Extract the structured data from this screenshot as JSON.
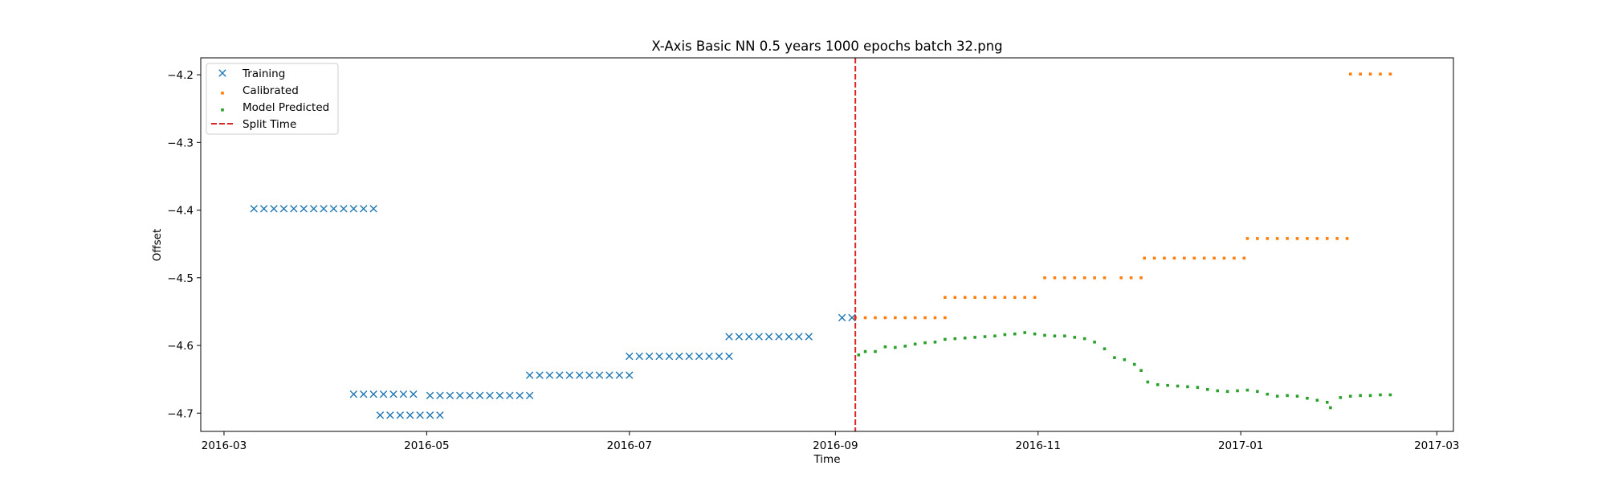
{
  "chart_data": {
    "type": "scatter",
    "title": "X-Axis Basic NN 0.5 years 1000 epochs batch 32.png",
    "xlabel": "Time",
    "ylabel": "Offset",
    "xlim": [
      "2016-02-23",
      "2017-03-06"
    ],
    "ylim": [
      -4.727,
      -4.175
    ],
    "x_ticks": [
      "2016-03",
      "2016-05",
      "2016-07",
      "2016-09",
      "2016-11",
      "2017-01",
      "2017-03"
    ],
    "y_ticks": [
      -4.7,
      -4.6,
      -4.5,
      -4.4,
      -4.3,
      -4.2
    ],
    "y_tick_labels": [
      "−4.7",
      "−4.6",
      "−4.5",
      "−4.4",
      "−4.3",
      "−4.2"
    ],
    "grid": false,
    "legend_position": "upper left",
    "split_time": "2016-09-07",
    "series": [
      {
        "name": "Training",
        "marker": "x",
        "color": "#1f77b4",
        "points": [
          [
            "2016-03-10",
            -4.398
          ],
          [
            "2016-03-13",
            -4.398
          ],
          [
            "2016-03-16",
            -4.398
          ],
          [
            "2016-03-19",
            -4.398
          ],
          [
            "2016-03-22",
            -4.398
          ],
          [
            "2016-03-25",
            -4.398
          ],
          [
            "2016-03-28",
            -4.398
          ],
          [
            "2016-03-31",
            -4.398
          ],
          [
            "2016-04-03",
            -4.398
          ],
          [
            "2016-04-06",
            -4.398
          ],
          [
            "2016-04-09",
            -4.398
          ],
          [
            "2016-04-12",
            -4.398
          ],
          [
            "2016-04-15",
            -4.398
          ],
          [
            "2016-04-09",
            -4.672
          ],
          [
            "2016-04-12",
            -4.672
          ],
          [
            "2016-04-15",
            -4.672
          ],
          [
            "2016-04-18",
            -4.672
          ],
          [
            "2016-04-21",
            -4.672
          ],
          [
            "2016-04-24",
            -4.672
          ],
          [
            "2016-04-27",
            -4.672
          ],
          [
            "2016-04-17",
            -4.703
          ],
          [
            "2016-04-20",
            -4.703
          ],
          [
            "2016-04-23",
            -4.703
          ],
          [
            "2016-04-26",
            -4.703
          ],
          [
            "2016-04-29",
            -4.703
          ],
          [
            "2016-05-02",
            -4.703
          ],
          [
            "2016-05-05",
            -4.703
          ],
          [
            "2016-05-02",
            -4.674
          ],
          [
            "2016-05-05",
            -4.674
          ],
          [
            "2016-05-08",
            -4.674
          ],
          [
            "2016-05-11",
            -4.674
          ],
          [
            "2016-05-14",
            -4.674
          ],
          [
            "2016-05-17",
            -4.674
          ],
          [
            "2016-05-20",
            -4.674
          ],
          [
            "2016-05-23",
            -4.674
          ],
          [
            "2016-05-26",
            -4.674
          ],
          [
            "2016-05-29",
            -4.674
          ],
          [
            "2016-06-01",
            -4.674
          ],
          [
            "2016-06-01",
            -4.644
          ],
          [
            "2016-06-04",
            -4.644
          ],
          [
            "2016-06-07",
            -4.644
          ],
          [
            "2016-06-10",
            -4.644
          ],
          [
            "2016-06-13",
            -4.644
          ],
          [
            "2016-06-16",
            -4.644
          ],
          [
            "2016-06-19",
            -4.644
          ],
          [
            "2016-06-22",
            -4.644
          ],
          [
            "2016-06-25",
            -4.644
          ],
          [
            "2016-06-28",
            -4.644
          ],
          [
            "2016-07-01",
            -4.644
          ],
          [
            "2016-07-01",
            -4.616
          ],
          [
            "2016-07-04",
            -4.616
          ],
          [
            "2016-07-07",
            -4.616
          ],
          [
            "2016-07-10",
            -4.616
          ],
          [
            "2016-07-13",
            -4.616
          ],
          [
            "2016-07-16",
            -4.616
          ],
          [
            "2016-07-19",
            -4.616
          ],
          [
            "2016-07-22",
            -4.616
          ],
          [
            "2016-07-25",
            -4.616
          ],
          [
            "2016-07-28",
            -4.616
          ],
          [
            "2016-07-31",
            -4.616
          ],
          [
            "2016-07-31",
            -4.587
          ],
          [
            "2016-08-03",
            -4.587
          ],
          [
            "2016-08-06",
            -4.587
          ],
          [
            "2016-08-09",
            -4.587
          ],
          [
            "2016-08-12",
            -4.587
          ],
          [
            "2016-08-15",
            -4.587
          ],
          [
            "2016-08-18",
            -4.587
          ],
          [
            "2016-08-21",
            -4.587
          ],
          [
            "2016-08-24",
            -4.587
          ],
          [
            "2016-09-03",
            -4.559
          ],
          [
            "2016-09-06",
            -4.559
          ]
        ]
      },
      {
        "name": "Calibrated",
        "marker": "s",
        "color": "#ff7f0e",
        "points": [
          [
            "2016-09-07",
            -4.559
          ],
          [
            "2016-09-10",
            -4.559
          ],
          [
            "2016-09-13",
            -4.559
          ],
          [
            "2016-09-16",
            -4.559
          ],
          [
            "2016-09-19",
            -4.559
          ],
          [
            "2016-09-22",
            -4.559
          ],
          [
            "2016-09-25",
            -4.559
          ],
          [
            "2016-09-28",
            -4.559
          ],
          [
            "2016-10-01",
            -4.559
          ],
          [
            "2016-10-04",
            -4.559
          ],
          [
            "2016-10-04",
            -4.529
          ],
          [
            "2016-10-07",
            -4.529
          ],
          [
            "2016-10-10",
            -4.529
          ],
          [
            "2016-10-13",
            -4.529
          ],
          [
            "2016-10-16",
            -4.529
          ],
          [
            "2016-10-19",
            -4.529
          ],
          [
            "2016-10-22",
            -4.529
          ],
          [
            "2016-10-25",
            -4.529
          ],
          [
            "2016-10-28",
            -4.529
          ],
          [
            "2016-10-31",
            -4.529
          ],
          [
            "2016-11-03",
            -4.5
          ],
          [
            "2016-11-06",
            -4.5
          ],
          [
            "2016-11-09",
            -4.5
          ],
          [
            "2016-11-12",
            -4.5
          ],
          [
            "2016-11-15",
            -4.5
          ],
          [
            "2016-11-18",
            -4.5
          ],
          [
            "2016-11-21",
            -4.5
          ],
          [
            "2016-11-26",
            -4.5
          ],
          [
            "2016-11-29",
            -4.5
          ],
          [
            "2016-12-02",
            -4.5
          ],
          [
            "2016-12-03",
            -4.471
          ],
          [
            "2016-12-06",
            -4.471
          ],
          [
            "2016-12-09",
            -4.471
          ],
          [
            "2016-12-12",
            -4.471
          ],
          [
            "2016-12-15",
            -4.471
          ],
          [
            "2016-12-18",
            -4.471
          ],
          [
            "2016-12-21",
            -4.471
          ],
          [
            "2016-12-24",
            -4.471
          ],
          [
            "2016-12-27",
            -4.471
          ],
          [
            "2016-12-30",
            -4.471
          ],
          [
            "2017-01-02",
            -4.471
          ],
          [
            "2017-01-03",
            -4.442
          ],
          [
            "2017-01-06",
            -4.442
          ],
          [
            "2017-01-09",
            -4.442
          ],
          [
            "2017-01-12",
            -4.442
          ],
          [
            "2017-01-15",
            -4.442
          ],
          [
            "2017-01-18",
            -4.442
          ],
          [
            "2017-01-21",
            -4.442
          ],
          [
            "2017-01-24",
            -4.442
          ],
          [
            "2017-01-27",
            -4.442
          ],
          [
            "2017-01-30",
            -4.442
          ],
          [
            "2017-02-02",
            -4.442
          ],
          [
            "2017-02-03",
            -4.199
          ],
          [
            "2017-02-06",
            -4.199
          ],
          [
            "2017-02-09",
            -4.199
          ],
          [
            "2017-02-12",
            -4.199
          ],
          [
            "2017-02-15",
            -4.199
          ]
        ]
      },
      {
        "name": "Model Predicted",
        "marker": "s",
        "color": "#2ca02c",
        "points": [
          [
            "2016-09-08",
            -4.614
          ],
          [
            "2016-09-10",
            -4.609
          ],
          [
            "2016-09-13",
            -4.609
          ],
          [
            "2016-09-16",
            -4.602
          ],
          [
            "2016-09-19",
            -4.603
          ],
          [
            "2016-09-22",
            -4.601
          ],
          [
            "2016-09-25",
            -4.598
          ],
          [
            "2016-09-28",
            -4.596
          ],
          [
            "2016-10-01",
            -4.595
          ],
          [
            "2016-10-04",
            -4.591
          ],
          [
            "2016-10-07",
            -4.59
          ],
          [
            "2016-10-10",
            -4.589
          ],
          [
            "2016-10-13",
            -4.588
          ],
          [
            "2016-10-16",
            -4.587
          ],
          [
            "2016-10-19",
            -4.586
          ],
          [
            "2016-10-22",
            -4.584
          ],
          [
            "2016-10-25",
            -4.583
          ],
          [
            "2016-10-28",
            -4.581
          ],
          [
            "2016-10-31",
            -4.583
          ],
          [
            "2016-11-03",
            -4.585
          ],
          [
            "2016-11-06",
            -4.586
          ],
          [
            "2016-11-09",
            -4.586
          ],
          [
            "2016-11-12",
            -4.588
          ],
          [
            "2016-11-15",
            -4.59
          ],
          [
            "2016-11-18",
            -4.595
          ],
          [
            "2016-11-21",
            -4.605
          ],
          [
            "2016-11-24",
            -4.618
          ],
          [
            "2016-11-27",
            -4.621
          ],
          [
            "2016-11-30",
            -4.628
          ],
          [
            "2016-12-02",
            -4.637
          ],
          [
            "2016-12-04",
            -4.654
          ],
          [
            "2016-12-07",
            -4.658
          ],
          [
            "2016-12-10",
            -4.659
          ],
          [
            "2016-12-13",
            -4.66
          ],
          [
            "2016-12-16",
            -4.661
          ],
          [
            "2016-12-19",
            -4.662
          ],
          [
            "2016-12-22",
            -4.665
          ],
          [
            "2016-12-25",
            -4.667
          ],
          [
            "2016-12-28",
            -4.668
          ],
          [
            "2016-12-31",
            -4.667
          ],
          [
            "2017-01-03",
            -4.666
          ],
          [
            "2017-01-06",
            -4.668
          ],
          [
            "2017-01-09",
            -4.672
          ],
          [
            "2017-01-12",
            -4.675
          ],
          [
            "2017-01-15",
            -4.674
          ],
          [
            "2017-01-18",
            -4.675
          ],
          [
            "2017-01-21",
            -4.678
          ],
          [
            "2017-01-24",
            -4.681
          ],
          [
            "2017-01-27",
            -4.684
          ],
          [
            "2017-01-28",
            -4.692
          ],
          [
            "2017-01-31",
            -4.677
          ],
          [
            "2017-02-03",
            -4.675
          ],
          [
            "2017-02-06",
            -4.674
          ],
          [
            "2017-02-09",
            -4.674
          ],
          [
            "2017-02-12",
            -4.673
          ],
          [
            "2017-02-15",
            -4.673
          ]
        ]
      }
    ]
  },
  "legend": {
    "items": [
      {
        "label": "Training",
        "color": "#1f77b4",
        "marker": "x"
      },
      {
        "label": "Calibrated",
        "color": "#ff7f0e",
        "marker": "square"
      },
      {
        "label": "Model Predicted",
        "color": "#2ca02c",
        "marker": "square"
      },
      {
        "label": "Split Time",
        "color": "#d62728",
        "marker": "dashed-line"
      }
    ]
  }
}
